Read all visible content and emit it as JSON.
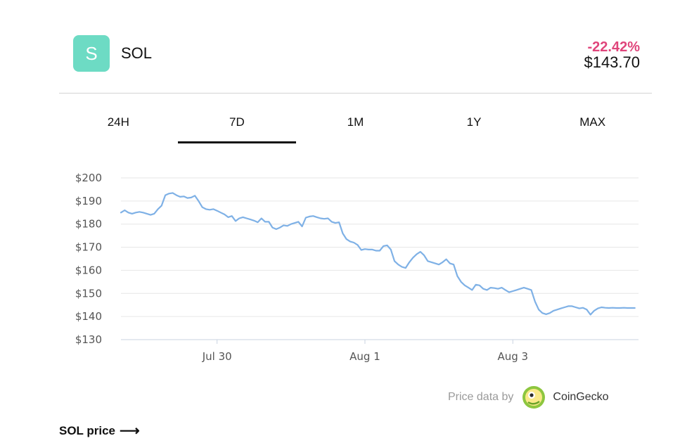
{
  "header": {
    "logo_letter": "S",
    "logo_color": "#6ddbc4",
    "coin_name": "SOL",
    "change": "-22.42%",
    "change_color": "#e0457b",
    "price": "$143.70"
  },
  "tabs": [
    {
      "label": "24H",
      "active": false
    },
    {
      "label": "7D",
      "active": true
    },
    {
      "label": "1M",
      "active": false
    },
    {
      "label": "1Y",
      "active": false
    },
    {
      "label": "MAX",
      "active": false
    }
  ],
  "chart_data": {
    "type": "line",
    "title": "",
    "xlabel": "",
    "ylabel": "",
    "ylim": [
      130,
      200
    ],
    "y_ticks": [
      "$130",
      "$140",
      "$150",
      "$160",
      "$170",
      "$180",
      "$190",
      "$200"
    ],
    "y_tick_values": [
      130,
      140,
      150,
      160,
      170,
      180,
      190,
      200
    ],
    "x_ticks": [
      "Jul 30",
      "Aug 1",
      "Aug 3"
    ],
    "x_tick_values": [
      29.0,
      31.0,
      33.0
    ],
    "xlim": [
      27.7,
      34.7
    ],
    "grid": true,
    "line_color": "#7fb1e6",
    "series": [
      {
        "x": [
          27.7,
          27.75,
          27.8,
          27.85,
          27.9,
          27.95,
          28.0,
          28.05,
          28.1,
          28.15,
          28.2,
          28.25,
          28.3,
          28.35,
          28.4,
          28.45,
          28.5,
          28.55,
          28.6,
          28.65,
          28.7,
          28.75,
          28.8,
          28.85,
          28.9,
          28.95,
          29.0,
          29.05,
          29.1,
          29.15,
          29.2,
          29.25,
          29.3,
          29.35,
          29.4,
          29.45,
          29.5,
          29.55,
          29.6,
          29.65,
          29.7,
          29.75,
          29.8,
          29.85,
          29.9,
          29.95,
          30.0,
          30.05,
          30.1,
          30.15,
          30.2,
          30.25,
          30.3,
          30.35,
          30.4,
          30.45,
          30.5,
          30.55,
          30.6,
          30.65,
          30.7,
          30.75,
          30.8,
          30.85,
          30.9,
          30.95,
          31.0,
          31.05,
          31.1,
          31.15,
          31.2,
          31.25,
          31.3,
          31.35,
          31.4,
          31.45,
          31.5,
          31.55,
          31.6,
          31.65,
          31.7,
          31.75,
          31.8,
          31.85,
          31.9,
          31.95,
          32.0,
          32.05,
          32.1,
          32.15,
          32.2,
          32.25,
          32.3,
          32.35,
          32.4,
          32.45,
          32.5,
          32.55,
          32.6,
          32.65,
          32.7,
          32.75,
          32.8,
          32.85,
          32.9,
          32.95,
          33.0,
          33.05,
          33.1,
          33.15,
          33.2,
          33.25,
          33.3,
          33.35,
          33.4,
          33.45,
          33.5,
          33.55,
          33.6,
          33.65,
          33.7,
          33.75,
          33.8,
          33.85,
          33.9,
          33.95,
          34.0,
          34.05,
          34.1,
          34.15,
          34.2,
          34.25,
          34.3,
          34.35,
          34.4,
          34.45,
          34.5,
          34.55,
          34.6,
          34.65
        ],
        "values": [
          185.0,
          186.0,
          185.0,
          184.5,
          185.0,
          185.3,
          185.0,
          184.5,
          184.0,
          184.5,
          186.5,
          188.0,
          192.5,
          193.2,
          193.5,
          192.5,
          191.8,
          192.0,
          191.3,
          191.5,
          192.3,
          190.0,
          187.3,
          186.5,
          186.2,
          186.5,
          185.8,
          185.0,
          184.2,
          183.0,
          183.5,
          181.3,
          182.5,
          183.0,
          182.5,
          182.0,
          181.5,
          180.8,
          182.5,
          181.0,
          181.0,
          178.5,
          177.8,
          178.5,
          179.5,
          179.2,
          180.0,
          180.5,
          181.0,
          179.0,
          182.8,
          183.3,
          183.5,
          183.0,
          182.5,
          182.3,
          182.5,
          181.0,
          180.5,
          180.8,
          176.0,
          173.5,
          172.5,
          172.0,
          171.0,
          168.8,
          169.2,
          169.0,
          169.0,
          168.5,
          168.5,
          170.5,
          170.8,
          169.0,
          164.0,
          162.5,
          161.5,
          161.0,
          163.5,
          165.5,
          167.0,
          168.0,
          166.5,
          164.0,
          163.5,
          163.0,
          162.5,
          163.5,
          164.8,
          163.0,
          162.5,
          157.5,
          155.0,
          153.5,
          152.5,
          151.5,
          153.8,
          153.5,
          152.0,
          151.5,
          152.5,
          152.3,
          152.0,
          152.5,
          151.5,
          150.5,
          151.0,
          151.5,
          152.0,
          152.5,
          152.0,
          151.5,
          146.5,
          143.0,
          141.5,
          141.0,
          141.5,
          142.5,
          143.0,
          143.5,
          144.0,
          144.5,
          144.5,
          144.0,
          143.5,
          143.8,
          143.0,
          140.8,
          142.5,
          143.5,
          144.0,
          143.8,
          143.7,
          143.8,
          143.7,
          143.7,
          143.8,
          143.7,
          143.7,
          143.7
        ]
      }
    ]
  },
  "attribution": {
    "prefix": "Price data by",
    "brand": "CoinGecko",
    "icon": "coingecko-logo-icon"
  },
  "footer": {
    "link_label": "SOL price",
    "arrow": "⟶"
  }
}
